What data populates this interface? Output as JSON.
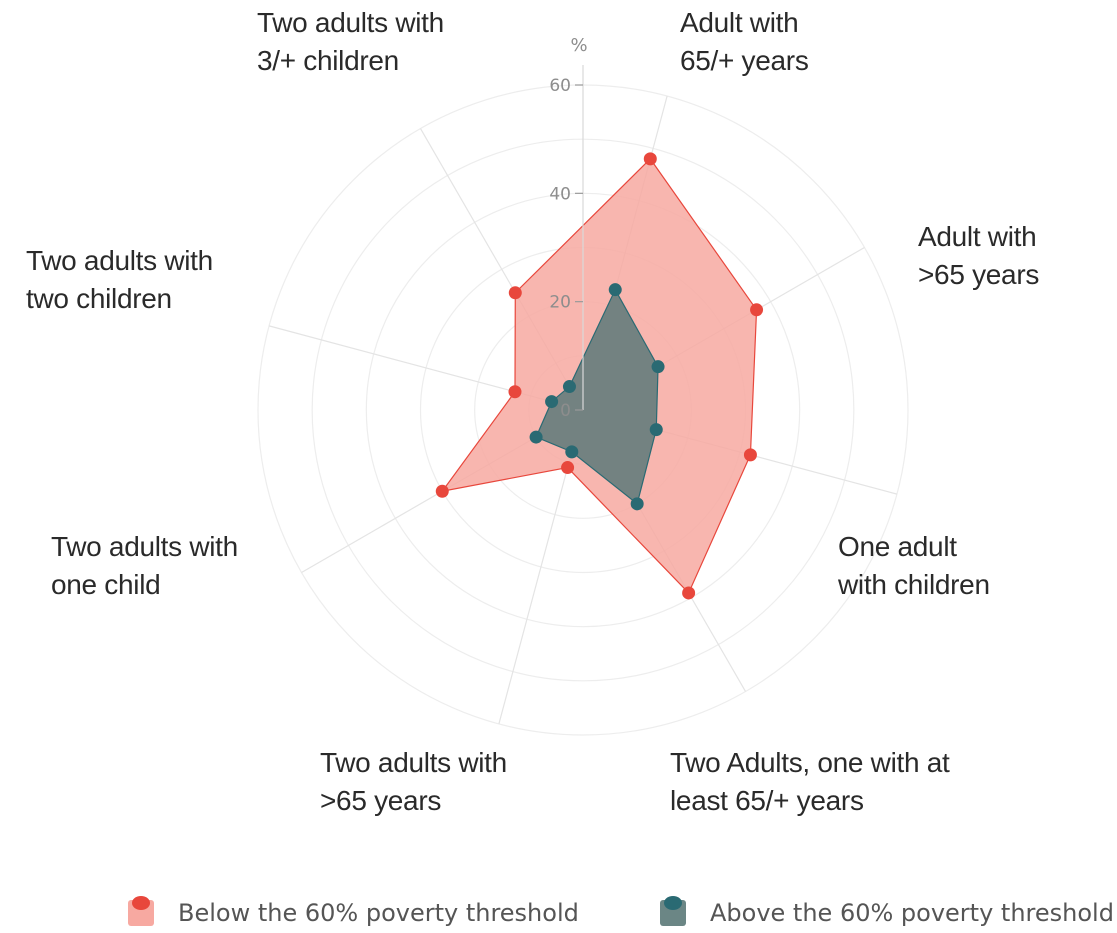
{
  "chart_data": {
    "type": "radar",
    "unit_label": "%",
    "rlim": [
      0,
      60
    ],
    "ticks": [
      0,
      20,
      40,
      60
    ],
    "tick_labels": [
      "0",
      "20",
      "40",
      "60"
    ],
    "categories": [
      "Adult with\n65/+ years",
      "Adult with\n>65 years",
      "One adult\nwith children",
      "Two Adults, one with at\nleast 65/+ years",
      "Two adults with\n>65 years",
      "Two adults with\none child",
      "Two adults with\ntwo children",
      "Two adults with\n3/+ children"
    ],
    "series": [
      {
        "name": "Below the 60% poverty threshold",
        "values": [
          48,
          37,
          32,
          39,
          11,
          30,
          13,
          25
        ],
        "color": "#e8473c",
        "fill": "#f7a9a1"
      },
      {
        "name": "Above the 60% poverty threshold",
        "values": [
          23,
          16,
          14,
          20,
          8,
          10,
          6,
          5
        ],
        "color": "#2a6a73",
        "fill": "#6b7f7e"
      }
    ],
    "grid": true,
    "legend_position": "bottom"
  }
}
